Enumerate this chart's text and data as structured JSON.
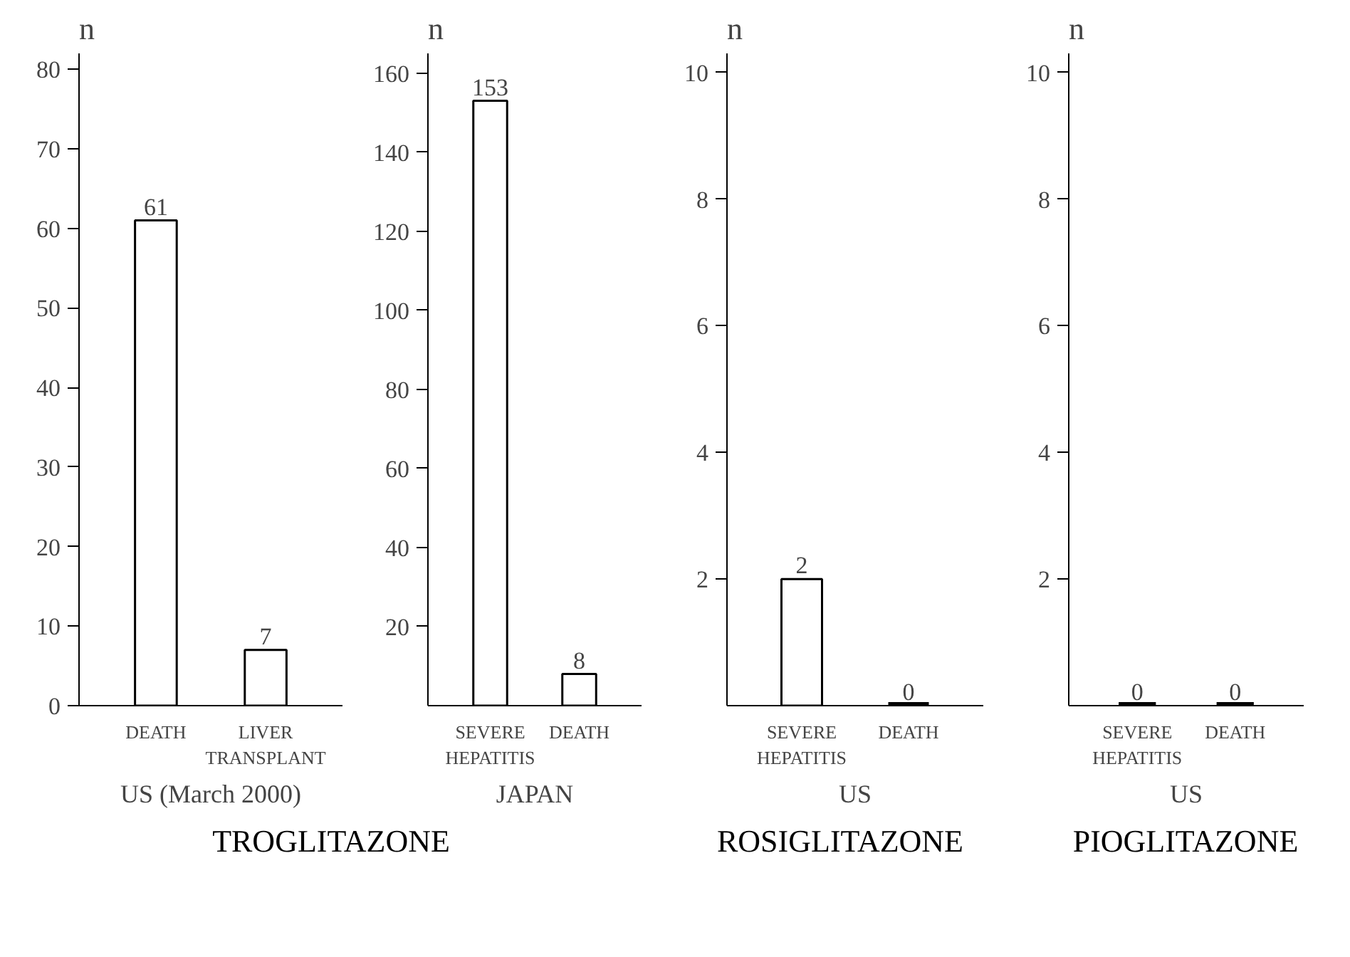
{
  "chart_data": [
    {
      "type": "bar",
      "ylabel": "n",
      "xlabel": "US (March 2000)",
      "annotations": [
        "TROGLITAZONE"
      ],
      "categories": [
        "DEATH",
        "LIVER\nTRANSPLANT"
      ],
      "values": [
        61,
        7
      ],
      "color": "#ffffff",
      "ylim": [
        0,
        82
      ],
      "yticks": [
        0,
        10,
        20,
        30,
        40,
        50,
        60,
        70,
        80
      ],
      "data_labels": true,
      "grid": false
    },
    {
      "type": "bar",
      "ylabel": "n",
      "xlabel": "JAPAN",
      "categories": [
        "SEVERE\nHEPATITIS",
        "DEATH"
      ],
      "values": [
        153,
        8
      ],
      "color": "#ffffff",
      "ylim": [
        0,
        165
      ],
      "yticks": [
        20,
        40,
        60,
        80,
        100,
        120,
        140,
        160
      ],
      "data_labels": true,
      "grid": false
    },
    {
      "type": "bar",
      "ylabel": "n",
      "xlabel": "US",
      "annotations": [
        "ROSIGLITAZONE"
      ],
      "categories": [
        "SEVERE\nHEPATITIS",
        "DEATH"
      ],
      "values": [
        2,
        0
      ],
      "colors": [
        "#ffffff",
        "#000000"
      ],
      "ylim": [
        0,
        10.3
      ],
      "yticks": [
        2,
        4,
        6,
        8,
        10
      ],
      "data_labels": true,
      "grid": false
    },
    {
      "type": "bar",
      "ylabel": "n",
      "xlabel": "US",
      "annotations": [
        "PIOGLITAZONE"
      ],
      "categories": [
        "SEVERE\nHEPATITIS",
        "DEATH"
      ],
      "values": [
        0,
        0
      ],
      "colors": [
        "#000000",
        "#000000"
      ],
      "ylim": [
        0,
        10.3
      ],
      "yticks": [
        2,
        4,
        6,
        8,
        10
      ],
      "data_labels": true,
      "grid": false
    }
  ]
}
